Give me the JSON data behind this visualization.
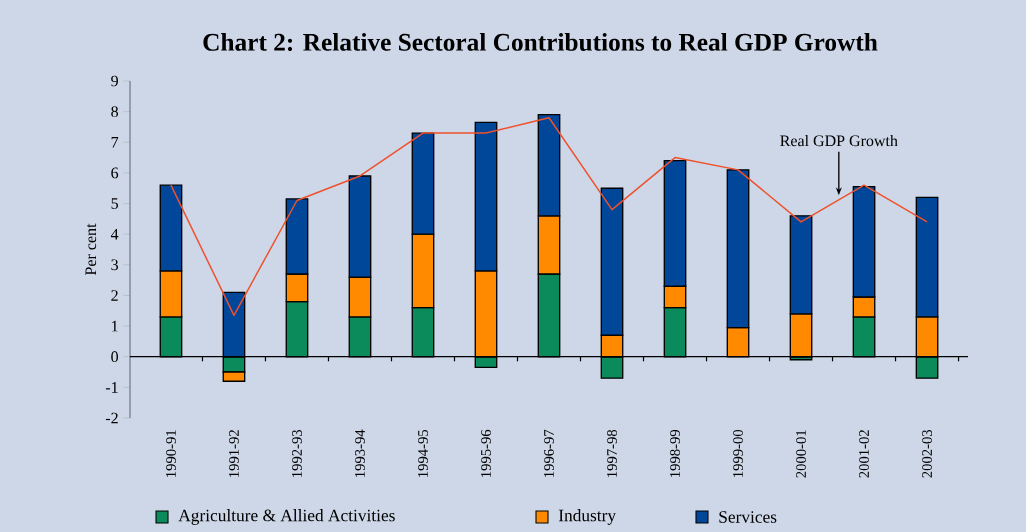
{
  "chart_data": {
    "type": "bar",
    "stacked": true,
    "title": "Chart 2: Relative Sectoral Contributions to Real GDP Growth",
    "ylabel": "Per cent",
    "categories": [
      "1990-91",
      "1991-92",
      "1992-93",
      "1993-94",
      "1994-95",
      "1995-96",
      "1996-97",
      "1997-98",
      "1998-99",
      "1999-00",
      "2000-01",
      "2001-02",
      "2002-03"
    ],
    "series": [
      {
        "name": "Agriculture & Allied Activities",
        "color": "#0b8a5c",
        "values": [
          1.3,
          -0.5,
          1.8,
          1.3,
          1.6,
          -0.35,
          2.7,
          -0.7,
          1.6,
          null,
          -0.1,
          1.3,
          -0.7
        ]
      },
      {
        "name": "Industry",
        "color": "#ff8a00",
        "values": [
          1.5,
          -0.3,
          0.9,
          1.3,
          2.4,
          2.8,
          1.9,
          0.7,
          0.7,
          0.95,
          1.4,
          0.65,
          1.3
        ]
      },
      {
        "name": "Services",
        "color": "#00479a",
        "values": [
          2.8,
          2.1,
          2.45,
          3.3,
          3.3,
          4.85,
          3.3,
          4.8,
          4.1,
          5.15,
          3.2,
          3.6,
          3.9
        ]
      },
      {
        "type": "line",
        "color": "#f0502a",
        "values": [
          5.6,
          1.35,
          5.1,
          5.9,
          7.3,
          7.3,
          7.8,
          4.8,
          6.5,
          6.1,
          4.4,
          5.6,
          4.4
        ]
      }
    ],
    "ylim": [
      -2,
      9
    ],
    "yticks": [
      -2,
      -1,
      0,
      1,
      2,
      3,
      4,
      5,
      6,
      7,
      8,
      9
    ],
    "annotations": [
      "Real GDP Growth"
    ],
    "legend": "bottom"
  }
}
